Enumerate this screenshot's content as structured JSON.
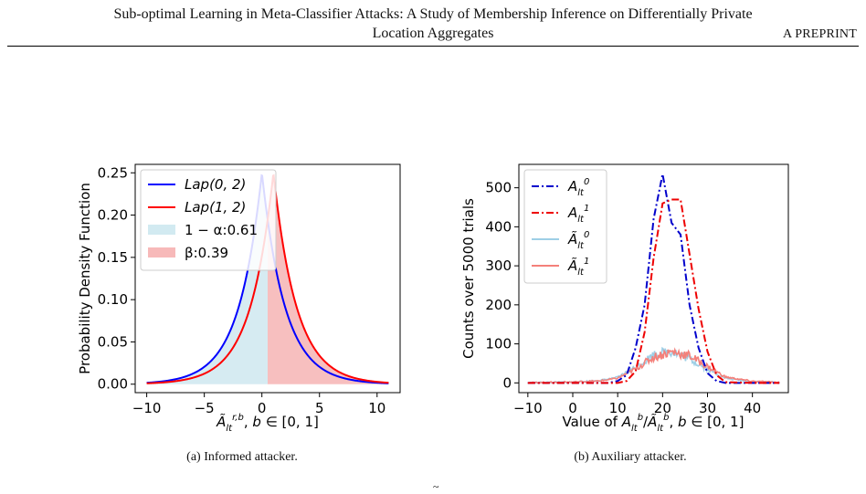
{
  "header": {
    "title_line1": "Sub-optimal Learning in Meta-Classifier Attacks: A Study of Membership Inference on Differentially Private",
    "title_line2": "Location Aggregates",
    "preprint": "A PREPRINT"
  },
  "figures": [
    {
      "caption": "(a) Informed attacker.",
      "chart_data": {
        "type": "line",
        "title": "",
        "ylabel": "Probability Density Function",
        "xlabel": "Ã_lt^{r,b}, b ∈ [0,1]",
        "xlim": [
          -11,
          12
        ],
        "ylim": [
          -0.01,
          0.26
        ],
        "xticks": [
          -10,
          -5,
          0,
          5,
          10
        ],
        "xtick_labels": [
          "−10",
          "−5",
          "0",
          "5",
          "10"
        ],
        "yticks": [
          0.0,
          0.05,
          0.1,
          0.15,
          0.2,
          0.25
        ],
        "ytick_labels": [
          "0.00",
          "0.05",
          "0.10",
          "0.15",
          "0.20",
          "0.25"
        ],
        "grid": false,
        "legend_position": "top-left",
        "series": [
          {
            "name": "Lap(0, 2)",
            "color": "#0000ff",
            "distribution": "laplace",
            "loc": 0,
            "scale": 2,
            "x_range": [
              -10,
              11
            ]
          },
          {
            "name": "Lap(1, 2)",
            "color": "#ff0000",
            "distribution": "laplace",
            "loc": 1,
            "scale": 2,
            "x_range": [
              -10,
              11
            ]
          }
        ],
        "shaded_regions": [
          {
            "name": "1 − α:0.61",
            "color": "#add8e6",
            "under": "Lap(0, 2)",
            "x_range": [
              -10,
              0.5
            ]
          },
          {
            "name": "β:0.39",
            "color": "#f08080",
            "under": "Lap(1, 2)",
            "x_range": [
              0.5,
              11
            ]
          }
        ],
        "threshold_x": 0.5
      }
    },
    {
      "caption": "(b) Auxiliary attacker.",
      "chart_data": {
        "type": "line",
        "title": "",
        "ylabel": "Counts over 5000 trials",
        "xlabel": "Value of A_lt^b / Ã_lt^b, b ∈ [0,1]",
        "xlim": [
          -12,
          48
        ],
        "ylim": [
          -25,
          560
        ],
        "xticks": [
          -10,
          0,
          10,
          20,
          30,
          40
        ],
        "xtick_labels": [
          "−10",
          "0",
          "10",
          "20",
          "30",
          "40"
        ],
        "yticks": [
          0,
          100,
          200,
          300,
          400,
          500
        ],
        "ytick_labels": [
          "0",
          "100",
          "200",
          "300",
          "400",
          "500"
        ],
        "grid": false,
        "legend_position": "top-left",
        "series": [
          {
            "name": "A_lt^0",
            "color": "#0000cc",
            "style": "dashdot",
            "x": [
              -10,
              8,
              10,
              12,
              14,
              16,
              18,
              20,
              22,
              24,
              26,
              28,
              30,
              32,
              34,
              40,
              46
            ],
            "y": [
              0,
              0,
              5,
              20,
              90,
              200,
              420,
              535,
              410,
              380,
              200,
              90,
              25,
              5,
              0,
              0,
              0
            ]
          },
          {
            "name": "A_lt^1",
            "color": "#ee0000",
            "style": "dashdot",
            "x": [
              -10,
              10,
              12,
              14,
              16,
              18,
              20,
              22,
              24,
              26,
              28,
              30,
              32,
              34,
              40,
              46
            ],
            "y": [
              0,
              0,
              5,
              30,
              130,
              320,
              460,
              470,
              470,
              330,
              190,
              80,
              20,
              2,
              0,
              0
            ]
          },
          {
            "name": "Ã_lt^0",
            "color": "#9ecfe6",
            "style": "noisy",
            "x": [
              -10,
              0,
              6,
              10,
              14,
              18,
              22,
              26,
              30,
              34,
              40,
              46
            ],
            "y": [
              0,
              2,
              6,
              14,
              40,
              72,
              82,
              62,
              35,
              12,
              3,
              1
            ]
          },
          {
            "name": "Ã_lt^1",
            "color": "#f4807a",
            "style": "noisy",
            "x": [
              -10,
              0,
              6,
              10,
              14,
              18,
              22,
              26,
              30,
              34,
              40,
              46
            ],
            "y": [
              0,
              2,
              5,
              12,
              36,
              66,
              80,
              70,
              42,
              15,
              4,
              1
            ]
          }
        ]
      }
    }
  ],
  "tail_mark": "~"
}
